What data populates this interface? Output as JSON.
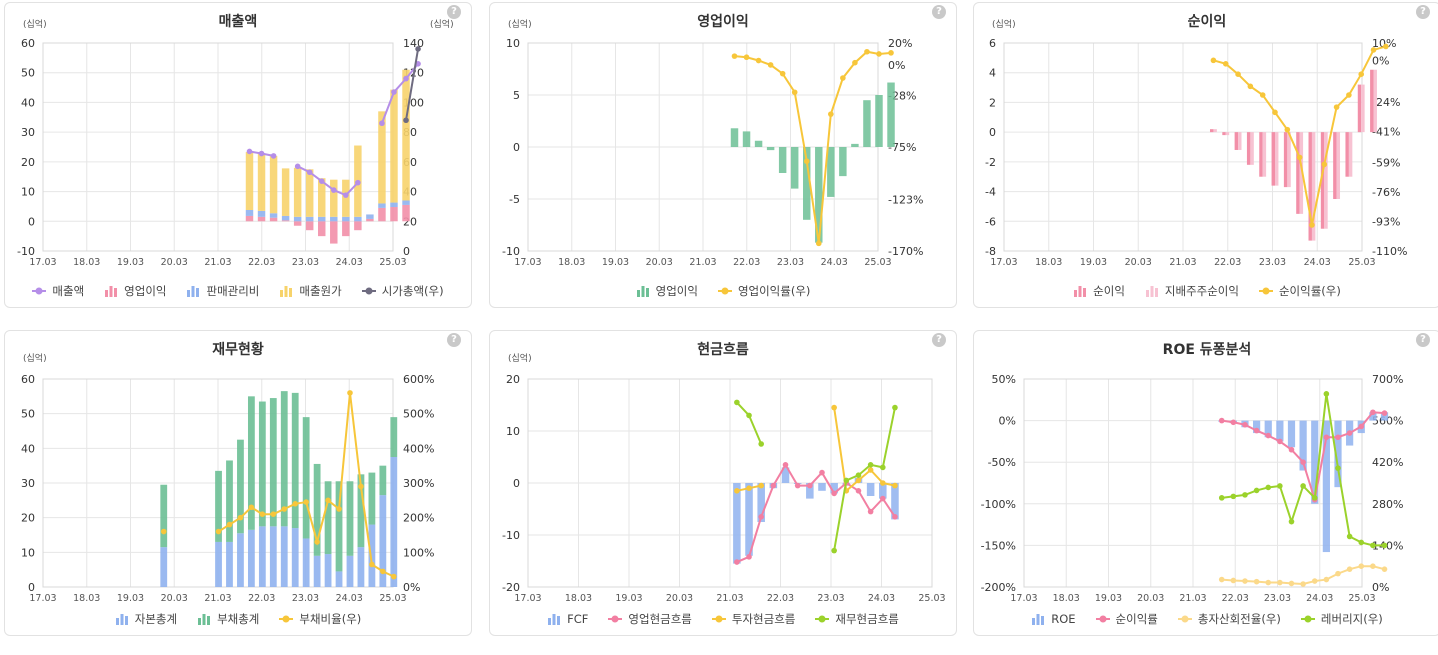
{
  "chart_data": [
    {
      "id": "sales",
      "type": "bar",
      "title": "매출액",
      "unit_left": "(십억)",
      "unit_right": "(십억)",
      "x_labels": [
        "17.03",
        "18.03",
        "19.03",
        "20.03",
        "21.03",
        "22.03",
        "23.03",
        "24.03",
        "25.03"
      ],
      "ylim": [
        -10,
        60
      ],
      "yticks": [
        -10,
        0,
        10,
        20,
        30,
        40,
        50,
        60
      ],
      "y2lim": [
        0,
        140
      ],
      "y2ticks": [
        "0",
        "20",
        "40",
        "60",
        "80",
        "100",
        "120",
        "140"
      ],
      "y2ticks_values": [
        0,
        20,
        40,
        60,
        80,
        100,
        120,
        140
      ],
      "quarters": [
        "21.12",
        "22.03",
        "22.06",
        "22.09",
        "22.12",
        "23.03",
        "23.06",
        "23.09",
        "23.12",
        "24.03",
        "24.06",
        "24.09",
        "24.12",
        "25.03",
        "25.06"
      ],
      "series": [
        {
          "name": "매출액",
          "kind": "line",
          "axis": "left",
          "color": "#b58ee8",
          "values": [
            23.5,
            22.8,
            22.0,
            null,
            18.5,
            16.5,
            13.5,
            10.5,
            8.8,
            13.0,
            null,
            33.0,
            43.5,
            48.0,
            53.0
          ]
        },
        {
          "name": "영업이익",
          "kind": "bar",
          "axis": "left",
          "color": "#f28fa8",
          "values": [
            1.8,
            1.5,
            1.2,
            0.3,
            -1.5,
            -3.0,
            -5.0,
            -7.5,
            -5.0,
            -3.0,
            0.8,
            4.5,
            4.8,
            5.5,
            null
          ]
        },
        {
          "name": "판매관리비",
          "kind": "bar",
          "axis": "left",
          "color": "#8fb1ee",
          "values": [
            2.0,
            2.0,
            1.5,
            1.5,
            1.5,
            1.5,
            1.5,
            1.5,
            1.5,
            1.5,
            1.5,
            1.5,
            1.5,
            1.5,
            null
          ]
        },
        {
          "name": "매출원가",
          "kind": "bar",
          "axis": "left",
          "color": "#f7d36b",
          "values": [
            19.5,
            19.3,
            19.3,
            16.0,
            16.5,
            16.0,
            13.0,
            12.5,
            12.5,
            24.0,
            null,
            31.0,
            38.0,
            44.0,
            null
          ]
        },
        {
          "name": "시가총액(우)",
          "kind": "line",
          "axis": "right",
          "color": "#6e6b80",
          "values": [
            null,
            null,
            null,
            null,
            null,
            null,
            null,
            null,
            null,
            null,
            null,
            null,
            null,
            88.0,
            136.0
          ]
        }
      ]
    },
    {
      "id": "op",
      "type": "bar",
      "title": "영업이익",
      "unit_left": "(십억)",
      "x_labels": [
        "17.03",
        "18.03",
        "19.03",
        "20.03",
        "21.03",
        "22.03",
        "23.03",
        "24.03",
        "25.03"
      ],
      "ylim": [
        -10,
        10
      ],
      "yticks": [
        -10,
        -5,
        0,
        5,
        10
      ],
      "y2lim": [
        -170,
        20
      ],
      "y2ticks": [
        "20%",
        "0%",
        "-28%",
        "-75%",
        "-123%",
        "-170%"
      ],
      "y2ticks_values": [
        20,
        0,
        -28,
        -75,
        -123,
        -170
      ],
      "quarters": [
        "21.12",
        "22.03",
        "22.06",
        "22.09",
        "22.12",
        "23.03",
        "23.06",
        "23.09",
        "23.12",
        "24.03",
        "24.06",
        "24.09",
        "24.12",
        "25.03",
        "25.06"
      ],
      "series": [
        {
          "name": "영업이익",
          "kind": "bar",
          "axis": "left",
          "color": "#6cbf95",
          "values": [
            1.8,
            1.5,
            0.6,
            -0.3,
            -2.5,
            -4.0,
            -7.0,
            -9.2,
            -4.8,
            -2.8,
            0.3,
            4.5,
            5.0,
            6.2,
            null
          ]
        },
        {
          "name": "영업이익률(우)",
          "kind": "line",
          "axis": "right",
          "color": "#f7c63a",
          "values": [
            8,
            7,
            4,
            0,
            -8,
            -25,
            -88,
            -163,
            -45,
            -12,
            2,
            12,
            10,
            11,
            null
          ]
        }
      ]
    },
    {
      "id": "net",
      "type": "bar",
      "title": "순이익",
      "unit_left": "(십억)",
      "x_labels": [
        "17.03",
        "18.03",
        "19.03",
        "20.03",
        "21.03",
        "22.03",
        "23.03",
        "24.03",
        "25.03"
      ],
      "ylim": [
        -8,
        6
      ],
      "yticks": [
        -8,
        -6,
        -4,
        -2,
        0,
        2,
        4,
        6
      ],
      "y2lim": [
        -110,
        10
      ],
      "y2ticks": [
        "10%",
        "0%",
        "-24%",
        "-41%",
        "-59%",
        "-76%",
        "-93%",
        "-110%"
      ],
      "y2ticks_values": [
        10,
        0,
        -24,
        -41,
        -59,
        -76,
        -93,
        -110
      ],
      "quarters": [
        "21.12",
        "22.03",
        "22.06",
        "22.09",
        "22.12",
        "23.03",
        "23.06",
        "23.09",
        "23.12",
        "24.03",
        "24.06",
        "24.09",
        "24.12",
        "25.03",
        "25.06"
      ],
      "series": [
        {
          "name": "순이익",
          "kind": "bar",
          "axis": "left",
          "color": "#f28fa8",
          "values": [
            0.2,
            -0.2,
            -1.2,
            -2.2,
            -3.0,
            -3.6,
            -3.7,
            -5.5,
            -7.3,
            -6.5,
            -4.5,
            -3.0,
            3.2,
            4.2,
            null
          ]
        },
        {
          "name": "지배주주순이익",
          "kind": "bar",
          "axis": "left",
          "color": "#f7c2d2",
          "values": [
            0.2,
            -0.2,
            -1.2,
            -2.2,
            -3.0,
            -3.6,
            -3.7,
            -5.5,
            -7.3,
            -6.5,
            -4.5,
            -3.0,
            3.2,
            4.2,
            null
          ]
        },
        {
          "name": "순이익률(우)",
          "kind": "line",
          "axis": "right",
          "color": "#f7c63a",
          "values": [
            0,
            -2,
            -8,
            -15,
            -20,
            -30,
            -40,
            -56,
            -95,
            -60,
            -27,
            -20,
            -8,
            6,
            8
          ]
        }
      ]
    },
    {
      "id": "fin",
      "type": "bar",
      "title": "재무현황",
      "unit_left": "(십억)",
      "x_labels": [
        "17.03",
        "18.03",
        "19.03",
        "20.03",
        "21.03",
        "22.03",
        "23.03",
        "24.03",
        "25.03"
      ],
      "ylim": [
        0,
        60
      ],
      "yticks": [
        0,
        10,
        20,
        30,
        40,
        50,
        60
      ],
      "y2lim": [
        0,
        600
      ],
      "y2ticks": [
        "0%",
        "100%",
        "200%",
        "300%",
        "400%",
        "500%",
        "600%"
      ],
      "y2ticks_values": [
        0,
        100,
        200,
        300,
        400,
        500,
        600
      ],
      "quarters": [
        "19.12",
        "20.03",
        "20.06",
        "20.09",
        "20.12",
        "21.03",
        "21.06",
        "21.09",
        "21.12",
        "22.03",
        "22.06",
        "22.09",
        "22.12",
        "23.03",
        "23.06",
        "23.09",
        "23.12",
        "24.03",
        "24.06",
        "24.09",
        "24.12",
        "25.03"
      ],
      "series": [
        {
          "name": "자본총계",
          "kind": "bar",
          "axis": "left",
          "color": "#8fb1ee",
          "values": [
            11.5,
            null,
            null,
            null,
            null,
            13.0,
            13.0,
            15.5,
            16.5,
            17.5,
            17.5,
            17.5,
            17.0,
            14.0,
            9.0,
            9.5,
            4.5,
            9.0,
            11.5,
            18.0,
            26.5,
            37.5
          ]
        },
        {
          "name": "부채총계",
          "kind": "bar",
          "axis": "left",
          "color": "#6cbf95",
          "values": [
            18.0,
            null,
            null,
            null,
            null,
            20.5,
            23.5,
            27.0,
            38.5,
            36.0,
            37.0,
            39.0,
            39.0,
            35.0,
            26.5,
            21.0,
            26.0,
            21.5,
            21.0,
            15.0,
            8.5,
            11.5
          ]
        },
        {
          "name": "부채비율(우)",
          "kind": "line",
          "axis": "right",
          "color": "#f7c63a",
          "values": [
            160,
            null,
            null,
            null,
            null,
            160,
            180,
            200,
            230,
            210,
            210,
            225,
            240,
            245,
            130,
            250,
            225,
            560,
            290,
            65,
            45,
            30
          ]
        }
      ]
    },
    {
      "id": "cf",
      "type": "bar",
      "title": "현금흐름",
      "unit_left": "(십억)",
      "x_labels": [
        "17.03",
        "18.03",
        "19.03",
        "20.03",
        "21.03",
        "22.03",
        "23.03",
        "24.03",
        "25.03"
      ],
      "ylim": [
        -20,
        20
      ],
      "yticks": [
        -20,
        -10,
        0,
        10,
        20
      ],
      "quarters": [
        "21.12",
        "22.03",
        "22.06",
        "22.09",
        "22.12",
        "23.03",
        "23.06",
        "23.09",
        "23.12",
        "24.03",
        "24.06",
        "24.09",
        "24.12",
        "25.03",
        "25.06"
      ],
      "series": [
        {
          "name": "FCF",
          "kind": "bar",
          "axis": "left",
          "color": "#8fb1ee",
          "values": [
            -15.5,
            -14.0,
            -7.5,
            -1.0,
            3.0,
            0.0,
            -3.0,
            -1.5,
            -2.0,
            -0.5,
            1.0,
            -2.5,
            -3.0,
            -7.0,
            null
          ]
        },
        {
          "name": "영업현금흐름",
          "kind": "line",
          "axis": "left",
          "color": "#f27fa2",
          "values": [
            -15.2,
            -14.2,
            -6.5,
            -0.5,
            3.5,
            -0.5,
            -0.5,
            2.0,
            -2.0,
            0.0,
            -1.5,
            -5.5,
            -3.0,
            -6.5,
            null
          ]
        },
        {
          "name": "투자현금흐름",
          "kind": "line",
          "axis": "left",
          "color": "#f7c63a",
          "values": [
            -1.5,
            -1.0,
            -0.5,
            null,
            null,
            null,
            null,
            null,
            14.5,
            -1.5,
            0.5,
            2.5,
            0.0,
            -0.5,
            null
          ]
        },
        {
          "name": "재무현금흐름",
          "kind": "line",
          "axis": "left",
          "color": "#9bd22b",
          "values": [
            15.5,
            13.0,
            7.5,
            null,
            null,
            null,
            null,
            null,
            -13.0,
            0.5,
            1.5,
            3.5,
            3.0,
            14.5,
            null
          ]
        }
      ]
    },
    {
      "id": "roe",
      "type": "bar",
      "title": "ROE 듀퐁분석",
      "x_labels": [
        "17.03",
        "18.03",
        "19.03",
        "20.03",
        "21.03",
        "22.03",
        "23.03",
        "24.03",
        "25.03"
      ],
      "ylim": [
        -200,
        50
      ],
      "yticks": [
        "-200%",
        "-150%",
        "-100%",
        "-50%",
        "0%",
        "50%"
      ],
      "yticks_values": [
        -200,
        -150,
        -100,
        -50,
        0,
        50
      ],
      "y2lim": [
        0,
        700
      ],
      "y2ticks": [
        "0%",
        "140%",
        "280%",
        "420%",
        "560%",
        "700%"
      ],
      "y2ticks_values": [
        0,
        140,
        280,
        420,
        560,
        700
      ],
      "quarters": [
        "21.12",
        "22.03",
        "22.06",
        "22.09",
        "22.12",
        "23.03",
        "23.06",
        "23.09",
        "23.12",
        "24.03",
        "24.06",
        "24.09",
        "24.12",
        "25.03",
        "25.06"
      ],
      "series": [
        {
          "name": "ROE",
          "kind": "bar",
          "axis": "left",
          "color": "#8fb1ee",
          "values": [
            -1,
            -3,
            -8,
            -15,
            -20,
            -25,
            -32,
            -60,
            -100,
            -158,
            -80,
            -30,
            -15,
            10,
            10
          ]
        },
        {
          "name": "순이익률",
          "kind": "line",
          "axis": "left",
          "color": "#f27fa2",
          "values": [
            0,
            -2,
            -5,
            -12,
            -18,
            -25,
            -35,
            -50,
            -95,
            -20,
            -20,
            -15,
            -7,
            10,
            9
          ]
        },
        {
          "name": "총자산회전율(우)",
          "kind": "line",
          "axis": "right",
          "color": "#fbd98a",
          "values": [
            25,
            22,
            20,
            18,
            15,
            15,
            12,
            10,
            20,
            25,
            45,
            60,
            70,
            70,
            60
          ]
        },
        {
          "name": "레버리지(우)",
          "kind": "line",
          "axis": "right",
          "color": "#9bd22b",
          "values": [
            300,
            305,
            310,
            325,
            335,
            340,
            220,
            340,
            300,
            650,
            400,
            170,
            150,
            140,
            140
          ]
        }
      ]
    }
  ],
  "help_label": "?"
}
